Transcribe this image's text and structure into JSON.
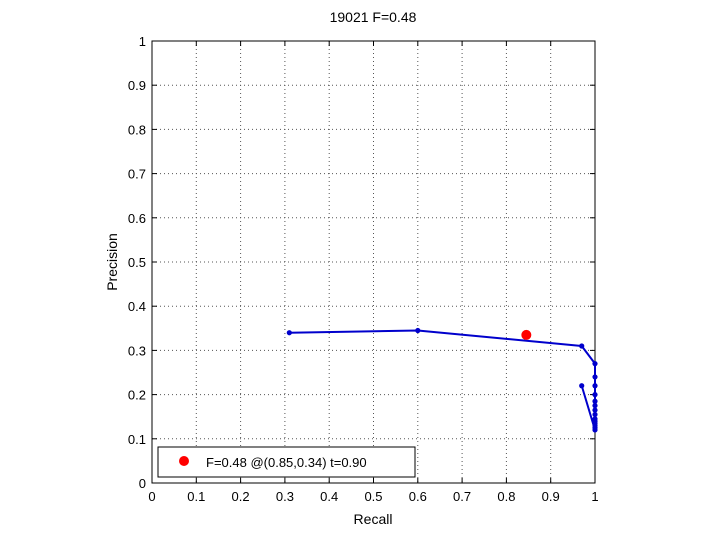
{
  "chart_data": {
    "type": "line",
    "title": "19021 F=0.48",
    "xlabel": "Recall",
    "ylabel": "Precision",
    "xlim": [
      0,
      1
    ],
    "ylim": [
      0,
      1
    ],
    "xticks": [
      "0",
      "0.1",
      "0.2",
      "0.3",
      "0.4",
      "0.5",
      "0.6",
      "0.7",
      "0.8",
      "0.9",
      "1"
    ],
    "yticks": [
      "0",
      "0.1",
      "0.2",
      "0.3",
      "0.4",
      "0.5",
      "0.6",
      "0.7",
      "0.8",
      "0.9",
      "1"
    ],
    "grid": true,
    "series": [
      {
        "color": "#0000cc",
        "points": [
          [
            0.31,
            0.34
          ],
          [
            0.6,
            0.345
          ],
          [
            0.97,
            0.31
          ],
          [
            1.0,
            0.27
          ],
          [
            1.0,
            0.24
          ],
          [
            1.0,
            0.22
          ],
          [
            1.0,
            0.2
          ],
          [
            1.0,
            0.185
          ],
          [
            1.0,
            0.175
          ],
          [
            1.0,
            0.165
          ],
          [
            1.0,
            0.155
          ],
          [
            1.0,
            0.145
          ],
          [
            1.0,
            0.14
          ],
          [
            1.0,
            0.135
          ],
          [
            1.0,
            0.13
          ],
          [
            1.0,
            0.125
          ],
          [
            1.0,
            0.12
          ],
          [
            0.97,
            0.22
          ]
        ]
      }
    ],
    "highlight": {
      "x": 0.845,
      "y": 0.335,
      "color": "#ff0000"
    },
    "legend": {
      "location": "bottom-left",
      "label": "F=0.48 @(0.85,0.34) t=0.90"
    }
  }
}
